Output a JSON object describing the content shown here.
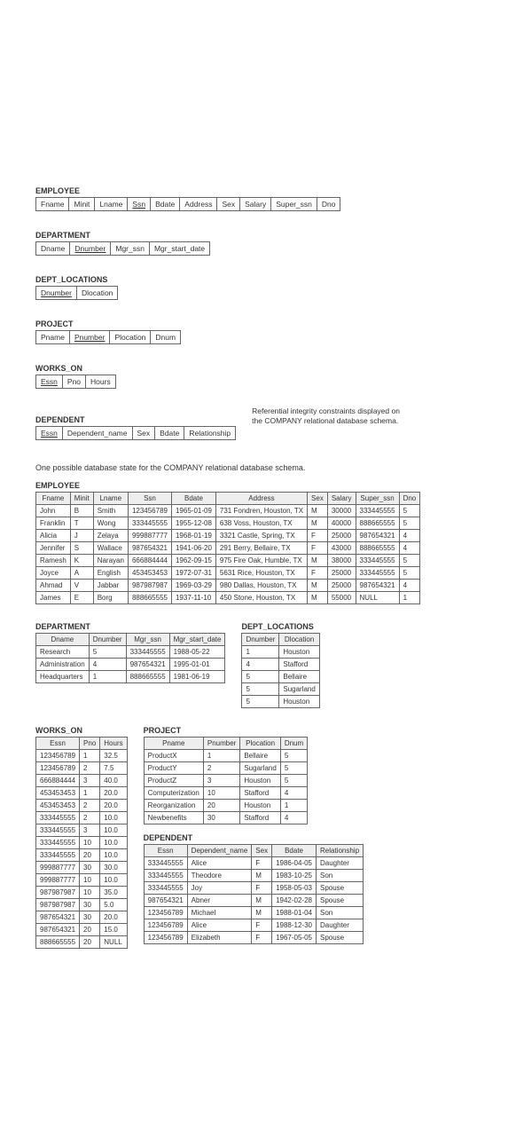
{
  "schemas": {
    "employee": {
      "title": "EMPLOYEE",
      "cols": [
        "Fname",
        "Minit",
        "Lname",
        "Ssn",
        "Bdate",
        "Address",
        "Sex",
        "Salary",
        "Super_ssn",
        "Dno"
      ],
      "key": 3
    },
    "department": {
      "title": "DEPARTMENT",
      "cols": [
        "Dname",
        "Dnumber",
        "Mgr_ssn",
        "Mgr_start_date"
      ],
      "key": 1
    },
    "dept_locations": {
      "title": "DEPT_LOCATIONS",
      "cols": [
        "Dnumber",
        "Dlocation"
      ],
      "key": 0
    },
    "project": {
      "title": "PROJECT",
      "cols": [
        "Pname",
        "Pnumber",
        "Plocation",
        "Dnum"
      ],
      "key": 1
    },
    "works_on": {
      "title": "WORKS_ON",
      "cols": [
        "Essn",
        "Pno",
        "Hours"
      ],
      "key": 0
    },
    "dependent": {
      "title": "DEPENDENT",
      "cols": [
        "Essn",
        "Dependent_name",
        "Sex",
        "Bdate",
        "Relationship"
      ],
      "key": 0
    }
  },
  "ref_note": "Referential integrity constraints displayed on the COMPANY relational database schema.",
  "caption2": "One possible database state for the COMPANY relational database schema.",
  "employee": {
    "title": "EMPLOYEE",
    "cols": [
      "Fname",
      "Minit",
      "Lname",
      "Ssn",
      "Bdate",
      "Address",
      "Sex",
      "Salary",
      "Super_ssn",
      "Dno"
    ],
    "rows": [
      [
        "John",
        "B",
        "Smith",
        "123456789",
        "1965-01-09",
        "731 Fondren, Houston, TX",
        "M",
        "30000",
        "333445555",
        "5"
      ],
      [
        "Franklin",
        "T",
        "Wong",
        "333445555",
        "1955-12-08",
        "638 Voss, Houston, TX",
        "M",
        "40000",
        "888665555",
        "5"
      ],
      [
        "Alicia",
        "J",
        "Zelaya",
        "999887777",
        "1968-01-19",
        "3321 Castle, Spring, TX",
        "F",
        "25000",
        "987654321",
        "4"
      ],
      [
        "Jennifer",
        "S",
        "Wallace",
        "987654321",
        "1941-06-20",
        "291 Berry, Bellaire, TX",
        "F",
        "43000",
        "888665555",
        "4"
      ],
      [
        "Ramesh",
        "K",
        "Narayan",
        "666884444",
        "1962-09-15",
        "975 Fire Oak, Humble, TX",
        "M",
        "38000",
        "333445555",
        "5"
      ],
      [
        "Joyce",
        "A",
        "English",
        "453453453",
        "1972-07-31",
        "5631 Rice, Houston, TX",
        "F",
        "25000",
        "333445555",
        "5"
      ],
      [
        "Ahmad",
        "V",
        "Jabbar",
        "987987987",
        "1969-03-29",
        "980 Dallas, Houston, TX",
        "M",
        "25000",
        "987654321",
        "4"
      ],
      [
        "James",
        "E",
        "Borg",
        "888665555",
        "1937-11-10",
        "450 Stone, Houston, TX",
        "M",
        "55000",
        "NULL",
        "1"
      ]
    ]
  },
  "department": {
    "title": "DEPARTMENT",
    "cols": [
      "Dname",
      "Dnumber",
      "Mgr_ssn",
      "Mgr_start_date"
    ],
    "rows": [
      [
        "Research",
        "5",
        "333445555",
        "1988-05-22"
      ],
      [
        "Administration",
        "4",
        "987654321",
        "1995-01-01"
      ],
      [
        "Headquarters",
        "1",
        "888665555",
        "1981-06-19"
      ]
    ]
  },
  "deptloc": {
    "title": "DEPT_LOCATIONS",
    "cols": [
      "Dnumber",
      "Dlocation"
    ],
    "rows": [
      [
        "1",
        "Houston"
      ],
      [
        "4",
        "Stafford"
      ],
      [
        "5",
        "Bellaire"
      ],
      [
        "5",
        "Sugarland"
      ],
      [
        "5",
        "Houston"
      ]
    ]
  },
  "works_on": {
    "title": "WORKS_ON",
    "cols": [
      "Essn",
      "Pno",
      "Hours"
    ],
    "rows": [
      [
        "123456789",
        "1",
        "32.5"
      ],
      [
        "123456789",
        "2",
        "7.5"
      ],
      [
        "666884444",
        "3",
        "40.0"
      ],
      [
        "453453453",
        "1",
        "20.0"
      ],
      [
        "453453453",
        "2",
        "20.0"
      ],
      [
        "333445555",
        "2",
        "10.0"
      ],
      [
        "333445555",
        "3",
        "10.0"
      ],
      [
        "333445555",
        "10",
        "10.0"
      ],
      [
        "333445555",
        "20",
        "10.0"
      ],
      [
        "999887777",
        "30",
        "30.0"
      ],
      [
        "999887777",
        "10",
        "10.0"
      ],
      [
        "987987987",
        "10",
        "35.0"
      ],
      [
        "987987987",
        "30",
        "5.0"
      ],
      [
        "987654321",
        "30",
        "20.0"
      ],
      [
        "987654321",
        "20",
        "15.0"
      ],
      [
        "888665555",
        "20",
        "NULL"
      ]
    ]
  },
  "project": {
    "title": "PROJECT",
    "cols": [
      "Pname",
      "Pnumber",
      "Plocation",
      "Dnum"
    ],
    "rows": [
      [
        "ProductX",
        "1",
        "Bellaire",
        "5"
      ],
      [
        "ProductY",
        "2",
        "Sugarland",
        "5"
      ],
      [
        "ProductZ",
        "3",
        "Houston",
        "5"
      ],
      [
        "Computerization",
        "10",
        "Stafford",
        "4"
      ],
      [
        "Reorganization",
        "20",
        "Houston",
        "1"
      ],
      [
        "Newbenefits",
        "30",
        "Stafford",
        "4"
      ]
    ]
  },
  "dependent": {
    "title": "DEPENDENT",
    "cols": [
      "Essn",
      "Dependent_name",
      "Sex",
      "Bdate",
      "Relationship"
    ],
    "rows": [
      [
        "333445555",
        "Alice",
        "F",
        "1986-04-05",
        "Daughter"
      ],
      [
        "333445555",
        "Theodore",
        "M",
        "1983-10-25",
        "Son"
      ],
      [
        "333445555",
        "Joy",
        "F",
        "1958-05-03",
        "Spouse"
      ],
      [
        "987654321",
        "Abner",
        "M",
        "1942-02-28",
        "Spouse"
      ],
      [
        "123456789",
        "Michael",
        "M",
        "1988-01-04",
        "Son"
      ],
      [
        "123456789",
        "Alice",
        "F",
        "1988-12-30",
        "Daughter"
      ],
      [
        "123456789",
        "Elizabeth",
        "F",
        "1967-05-05",
        "Spouse"
      ]
    ]
  }
}
